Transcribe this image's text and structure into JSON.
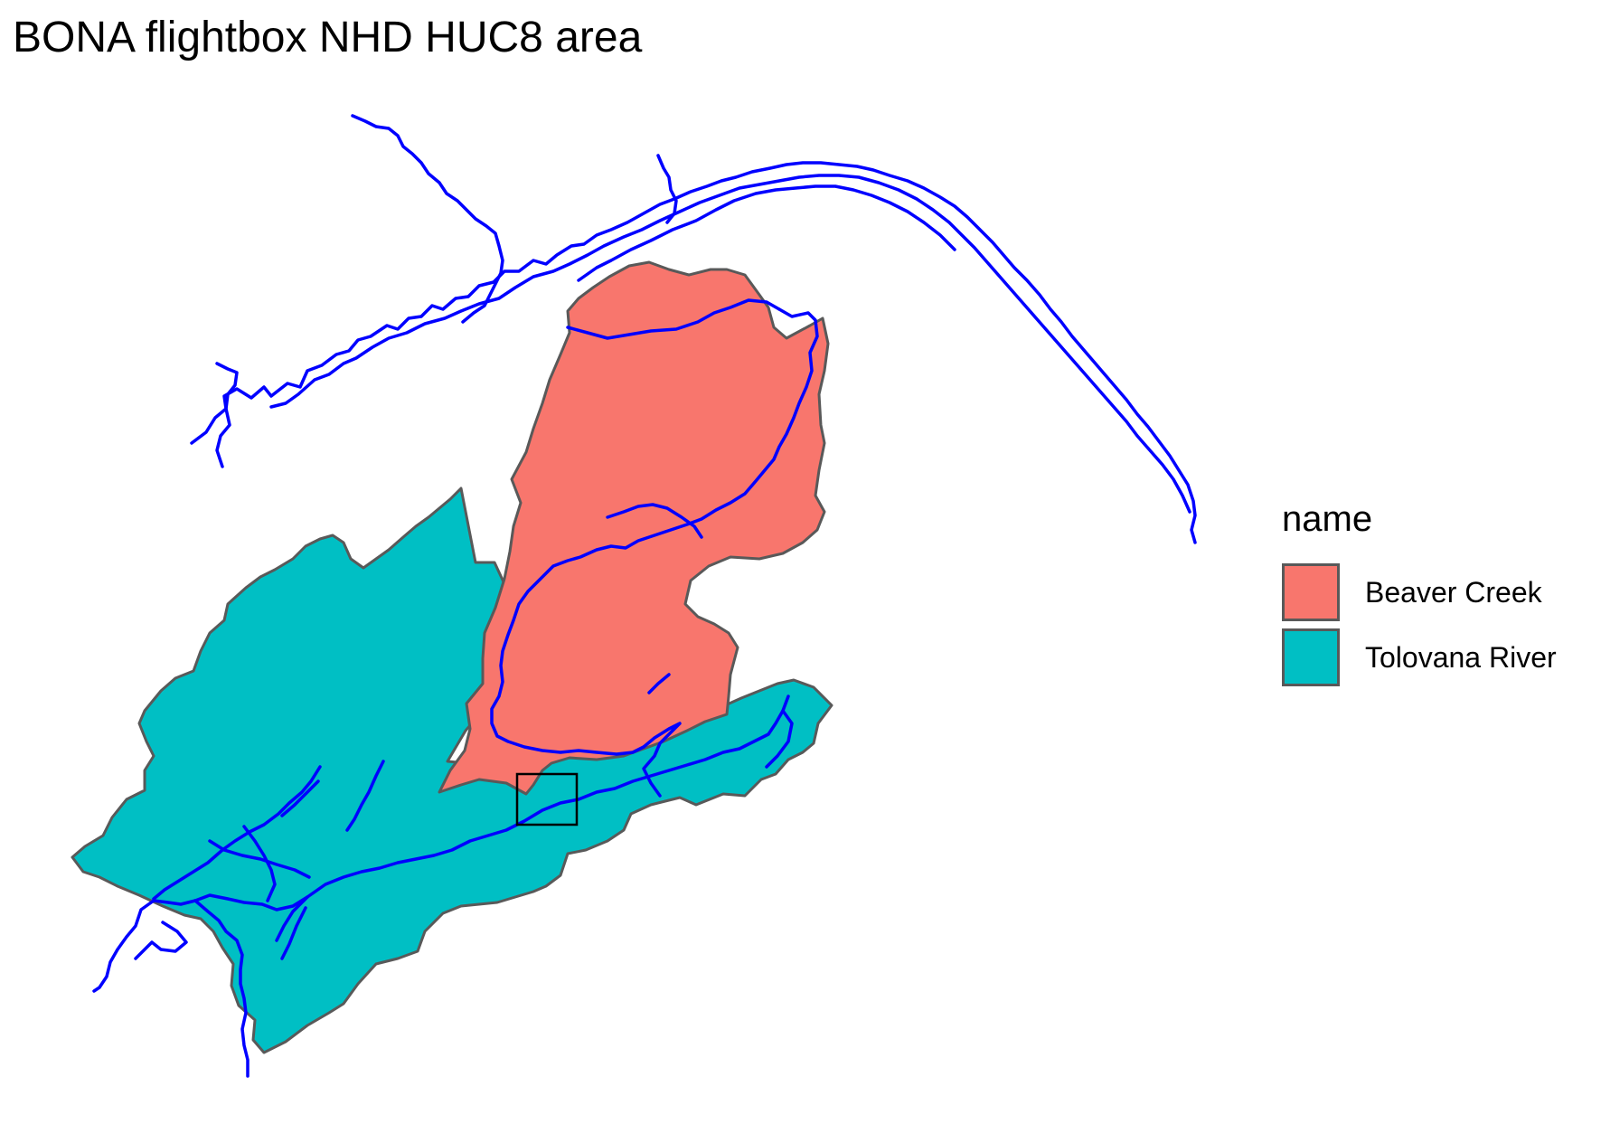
{
  "title": "BONA flightbox NHD HUC8 area",
  "legend": {
    "title": "name",
    "items": [
      {
        "label": "Beaver Creek",
        "color": "#F8766D"
      },
      {
        "label": "Tolovana River",
        "color": "#00BFC4"
      }
    ]
  },
  "colors": {
    "flowline": "#0000FF",
    "boundary": "#595959",
    "flightbox": "#000000"
  }
}
